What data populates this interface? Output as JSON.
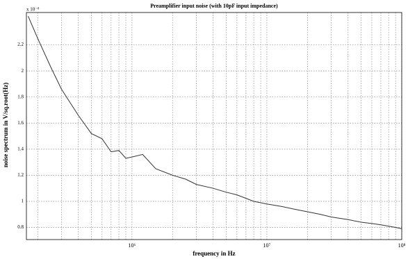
{
  "chart_data": {
    "type": "line",
    "title": "Preamplifier input noise (with 10pF input impedance)",
    "xlabel": "frequency in Hz",
    "ylabel": "noise spectrum in V/sq.root(Hz)",
    "y_multiplier": "x 10⁻⁸",
    "x": [
      170000,
      200000,
      250000,
      300000,
      400000,
      500000,
      600000,
      700000,
      800000,
      900000,
      1000000,
      1200000,
      1500000,
      2000000,
      2500000,
      3000000,
      4000000,
      5000000,
      6000000,
      8000000,
      10000000,
      13000000,
      16000000,
      20000000,
      25000000,
      30000000,
      40000000,
      50000000,
      60000000,
      70000000,
      80000000,
      90000000,
      100000000
    ],
    "series": [
      {
        "name": "noise",
        "color": "#333333",
        "values": [
          2.42,
          2.25,
          2.03,
          1.86,
          1.66,
          1.52,
          1.48,
          1.38,
          1.39,
          1.33,
          1.34,
          1.36,
          1.25,
          1.2,
          1.17,
          1.13,
          1.1,
          1.07,
          1.05,
          1.0,
          0.98,
          0.96,
          0.94,
          0.92,
          0.9,
          0.88,
          0.86,
          0.84,
          0.83,
          0.82,
          0.81,
          0.8,
          0.79
        ]
      }
    ],
    "xscale": "log",
    "xlim": [
      165000,
      100000000
    ],
    "xticks": [
      {
        "value": 1000000,
        "label": "10⁶"
      },
      {
        "value": 10000000,
        "label": "10⁷"
      },
      {
        "value": 100000000,
        "label": "10⁸"
      }
    ],
    "xminorticks": [
      200000,
      300000,
      400000,
      500000,
      600000,
      700000,
      800000,
      900000,
      2000000,
      3000000,
      4000000,
      5000000,
      6000000,
      7000000,
      8000000,
      9000000,
      20000000,
      30000000,
      40000000,
      50000000,
      60000000,
      70000000,
      80000000,
      90000000
    ],
    "ylim": [
      0.707,
      2.448
    ],
    "yticks": [
      0.8,
      1,
      1.2,
      1.4,
      1.6,
      1.8,
      2,
      2.2
    ],
    "grid": true
  }
}
